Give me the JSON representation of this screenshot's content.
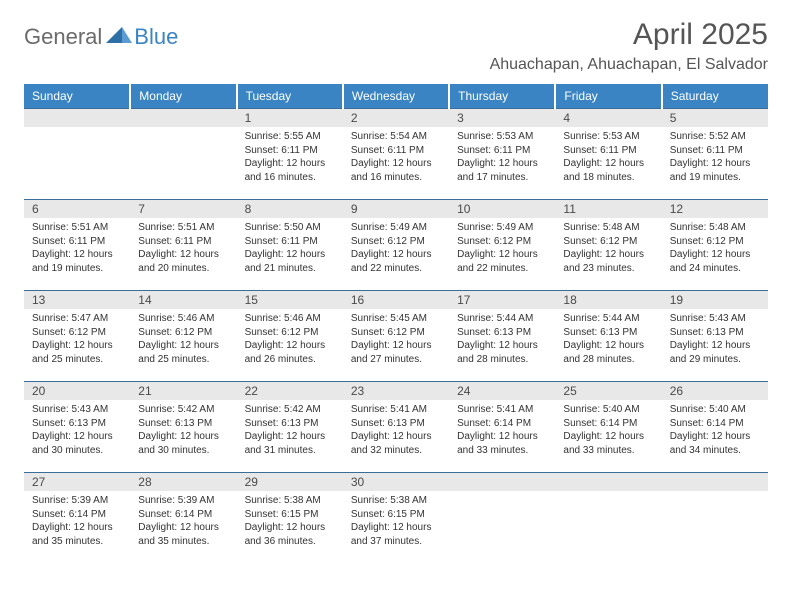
{
  "logo": {
    "text1": "General",
    "text2": "Blue"
  },
  "title": "April 2025",
  "location": "Ahuachapan, Ahuachapan, El Salvador",
  "weekdays": [
    "Sunday",
    "Monday",
    "Tuesday",
    "Wednesday",
    "Thursday",
    "Friday",
    "Saturday"
  ],
  "colors": {
    "header_bg": "#3a84c4",
    "header_text": "#ffffff",
    "daynum_bg": "#e8e8e8",
    "rule": "#3a6d9a",
    "body_text": "#333333",
    "title_text": "#555555"
  },
  "weeks": [
    [
      {
        "blank": true
      },
      {
        "blank": true
      },
      {
        "n": "1",
        "sunrise": "5:55 AM",
        "sunset": "6:11 PM",
        "daylight1": "Daylight: 12 hours",
        "daylight2": "and 16 minutes."
      },
      {
        "n": "2",
        "sunrise": "5:54 AM",
        "sunset": "6:11 PM",
        "daylight1": "Daylight: 12 hours",
        "daylight2": "and 16 minutes."
      },
      {
        "n": "3",
        "sunrise": "5:53 AM",
        "sunset": "6:11 PM",
        "daylight1": "Daylight: 12 hours",
        "daylight2": "and 17 minutes."
      },
      {
        "n": "4",
        "sunrise": "5:53 AM",
        "sunset": "6:11 PM",
        "daylight1": "Daylight: 12 hours",
        "daylight2": "and 18 minutes."
      },
      {
        "n": "5",
        "sunrise": "5:52 AM",
        "sunset": "6:11 PM",
        "daylight1": "Daylight: 12 hours",
        "daylight2": "and 19 minutes."
      }
    ],
    [
      {
        "n": "6",
        "sunrise": "5:51 AM",
        "sunset": "6:11 PM",
        "daylight1": "Daylight: 12 hours",
        "daylight2": "and 19 minutes."
      },
      {
        "n": "7",
        "sunrise": "5:51 AM",
        "sunset": "6:11 PM",
        "daylight1": "Daylight: 12 hours",
        "daylight2": "and 20 minutes."
      },
      {
        "n": "8",
        "sunrise": "5:50 AM",
        "sunset": "6:11 PM",
        "daylight1": "Daylight: 12 hours",
        "daylight2": "and 21 minutes."
      },
      {
        "n": "9",
        "sunrise": "5:49 AM",
        "sunset": "6:12 PM",
        "daylight1": "Daylight: 12 hours",
        "daylight2": "and 22 minutes."
      },
      {
        "n": "10",
        "sunrise": "5:49 AM",
        "sunset": "6:12 PM",
        "daylight1": "Daylight: 12 hours",
        "daylight2": "and 22 minutes."
      },
      {
        "n": "11",
        "sunrise": "5:48 AM",
        "sunset": "6:12 PM",
        "daylight1": "Daylight: 12 hours",
        "daylight2": "and 23 minutes."
      },
      {
        "n": "12",
        "sunrise": "5:48 AM",
        "sunset": "6:12 PM",
        "daylight1": "Daylight: 12 hours",
        "daylight2": "and 24 minutes."
      }
    ],
    [
      {
        "n": "13",
        "sunrise": "5:47 AM",
        "sunset": "6:12 PM",
        "daylight1": "Daylight: 12 hours",
        "daylight2": "and 25 minutes."
      },
      {
        "n": "14",
        "sunrise": "5:46 AM",
        "sunset": "6:12 PM",
        "daylight1": "Daylight: 12 hours",
        "daylight2": "and 25 minutes."
      },
      {
        "n": "15",
        "sunrise": "5:46 AM",
        "sunset": "6:12 PM",
        "daylight1": "Daylight: 12 hours",
        "daylight2": "and 26 minutes."
      },
      {
        "n": "16",
        "sunrise": "5:45 AM",
        "sunset": "6:12 PM",
        "daylight1": "Daylight: 12 hours",
        "daylight2": "and 27 minutes."
      },
      {
        "n": "17",
        "sunrise": "5:44 AM",
        "sunset": "6:13 PM",
        "daylight1": "Daylight: 12 hours",
        "daylight2": "and 28 minutes."
      },
      {
        "n": "18",
        "sunrise": "5:44 AM",
        "sunset": "6:13 PM",
        "daylight1": "Daylight: 12 hours",
        "daylight2": "and 28 minutes."
      },
      {
        "n": "19",
        "sunrise": "5:43 AM",
        "sunset": "6:13 PM",
        "daylight1": "Daylight: 12 hours",
        "daylight2": "and 29 minutes."
      }
    ],
    [
      {
        "n": "20",
        "sunrise": "5:43 AM",
        "sunset": "6:13 PM",
        "daylight1": "Daylight: 12 hours",
        "daylight2": "and 30 minutes."
      },
      {
        "n": "21",
        "sunrise": "5:42 AM",
        "sunset": "6:13 PM",
        "daylight1": "Daylight: 12 hours",
        "daylight2": "and 30 minutes."
      },
      {
        "n": "22",
        "sunrise": "5:42 AM",
        "sunset": "6:13 PM",
        "daylight1": "Daylight: 12 hours",
        "daylight2": "and 31 minutes."
      },
      {
        "n": "23",
        "sunrise": "5:41 AM",
        "sunset": "6:13 PM",
        "daylight1": "Daylight: 12 hours",
        "daylight2": "and 32 minutes."
      },
      {
        "n": "24",
        "sunrise": "5:41 AM",
        "sunset": "6:14 PM",
        "daylight1": "Daylight: 12 hours",
        "daylight2": "and 33 minutes."
      },
      {
        "n": "25",
        "sunrise": "5:40 AM",
        "sunset": "6:14 PM",
        "daylight1": "Daylight: 12 hours",
        "daylight2": "and 33 minutes."
      },
      {
        "n": "26",
        "sunrise": "5:40 AM",
        "sunset": "6:14 PM",
        "daylight1": "Daylight: 12 hours",
        "daylight2": "and 34 minutes."
      }
    ],
    [
      {
        "n": "27",
        "sunrise": "5:39 AM",
        "sunset": "6:14 PM",
        "daylight1": "Daylight: 12 hours",
        "daylight2": "and 35 minutes."
      },
      {
        "n": "28",
        "sunrise": "5:39 AM",
        "sunset": "6:14 PM",
        "daylight1": "Daylight: 12 hours",
        "daylight2": "and 35 minutes."
      },
      {
        "n": "29",
        "sunrise": "5:38 AM",
        "sunset": "6:15 PM",
        "daylight1": "Daylight: 12 hours",
        "daylight2": "and 36 minutes."
      },
      {
        "n": "30",
        "sunrise": "5:38 AM",
        "sunset": "6:15 PM",
        "daylight1": "Daylight: 12 hours",
        "daylight2": "and 37 minutes."
      },
      {
        "blank": true
      },
      {
        "blank": true
      },
      {
        "blank": true
      }
    ]
  ]
}
